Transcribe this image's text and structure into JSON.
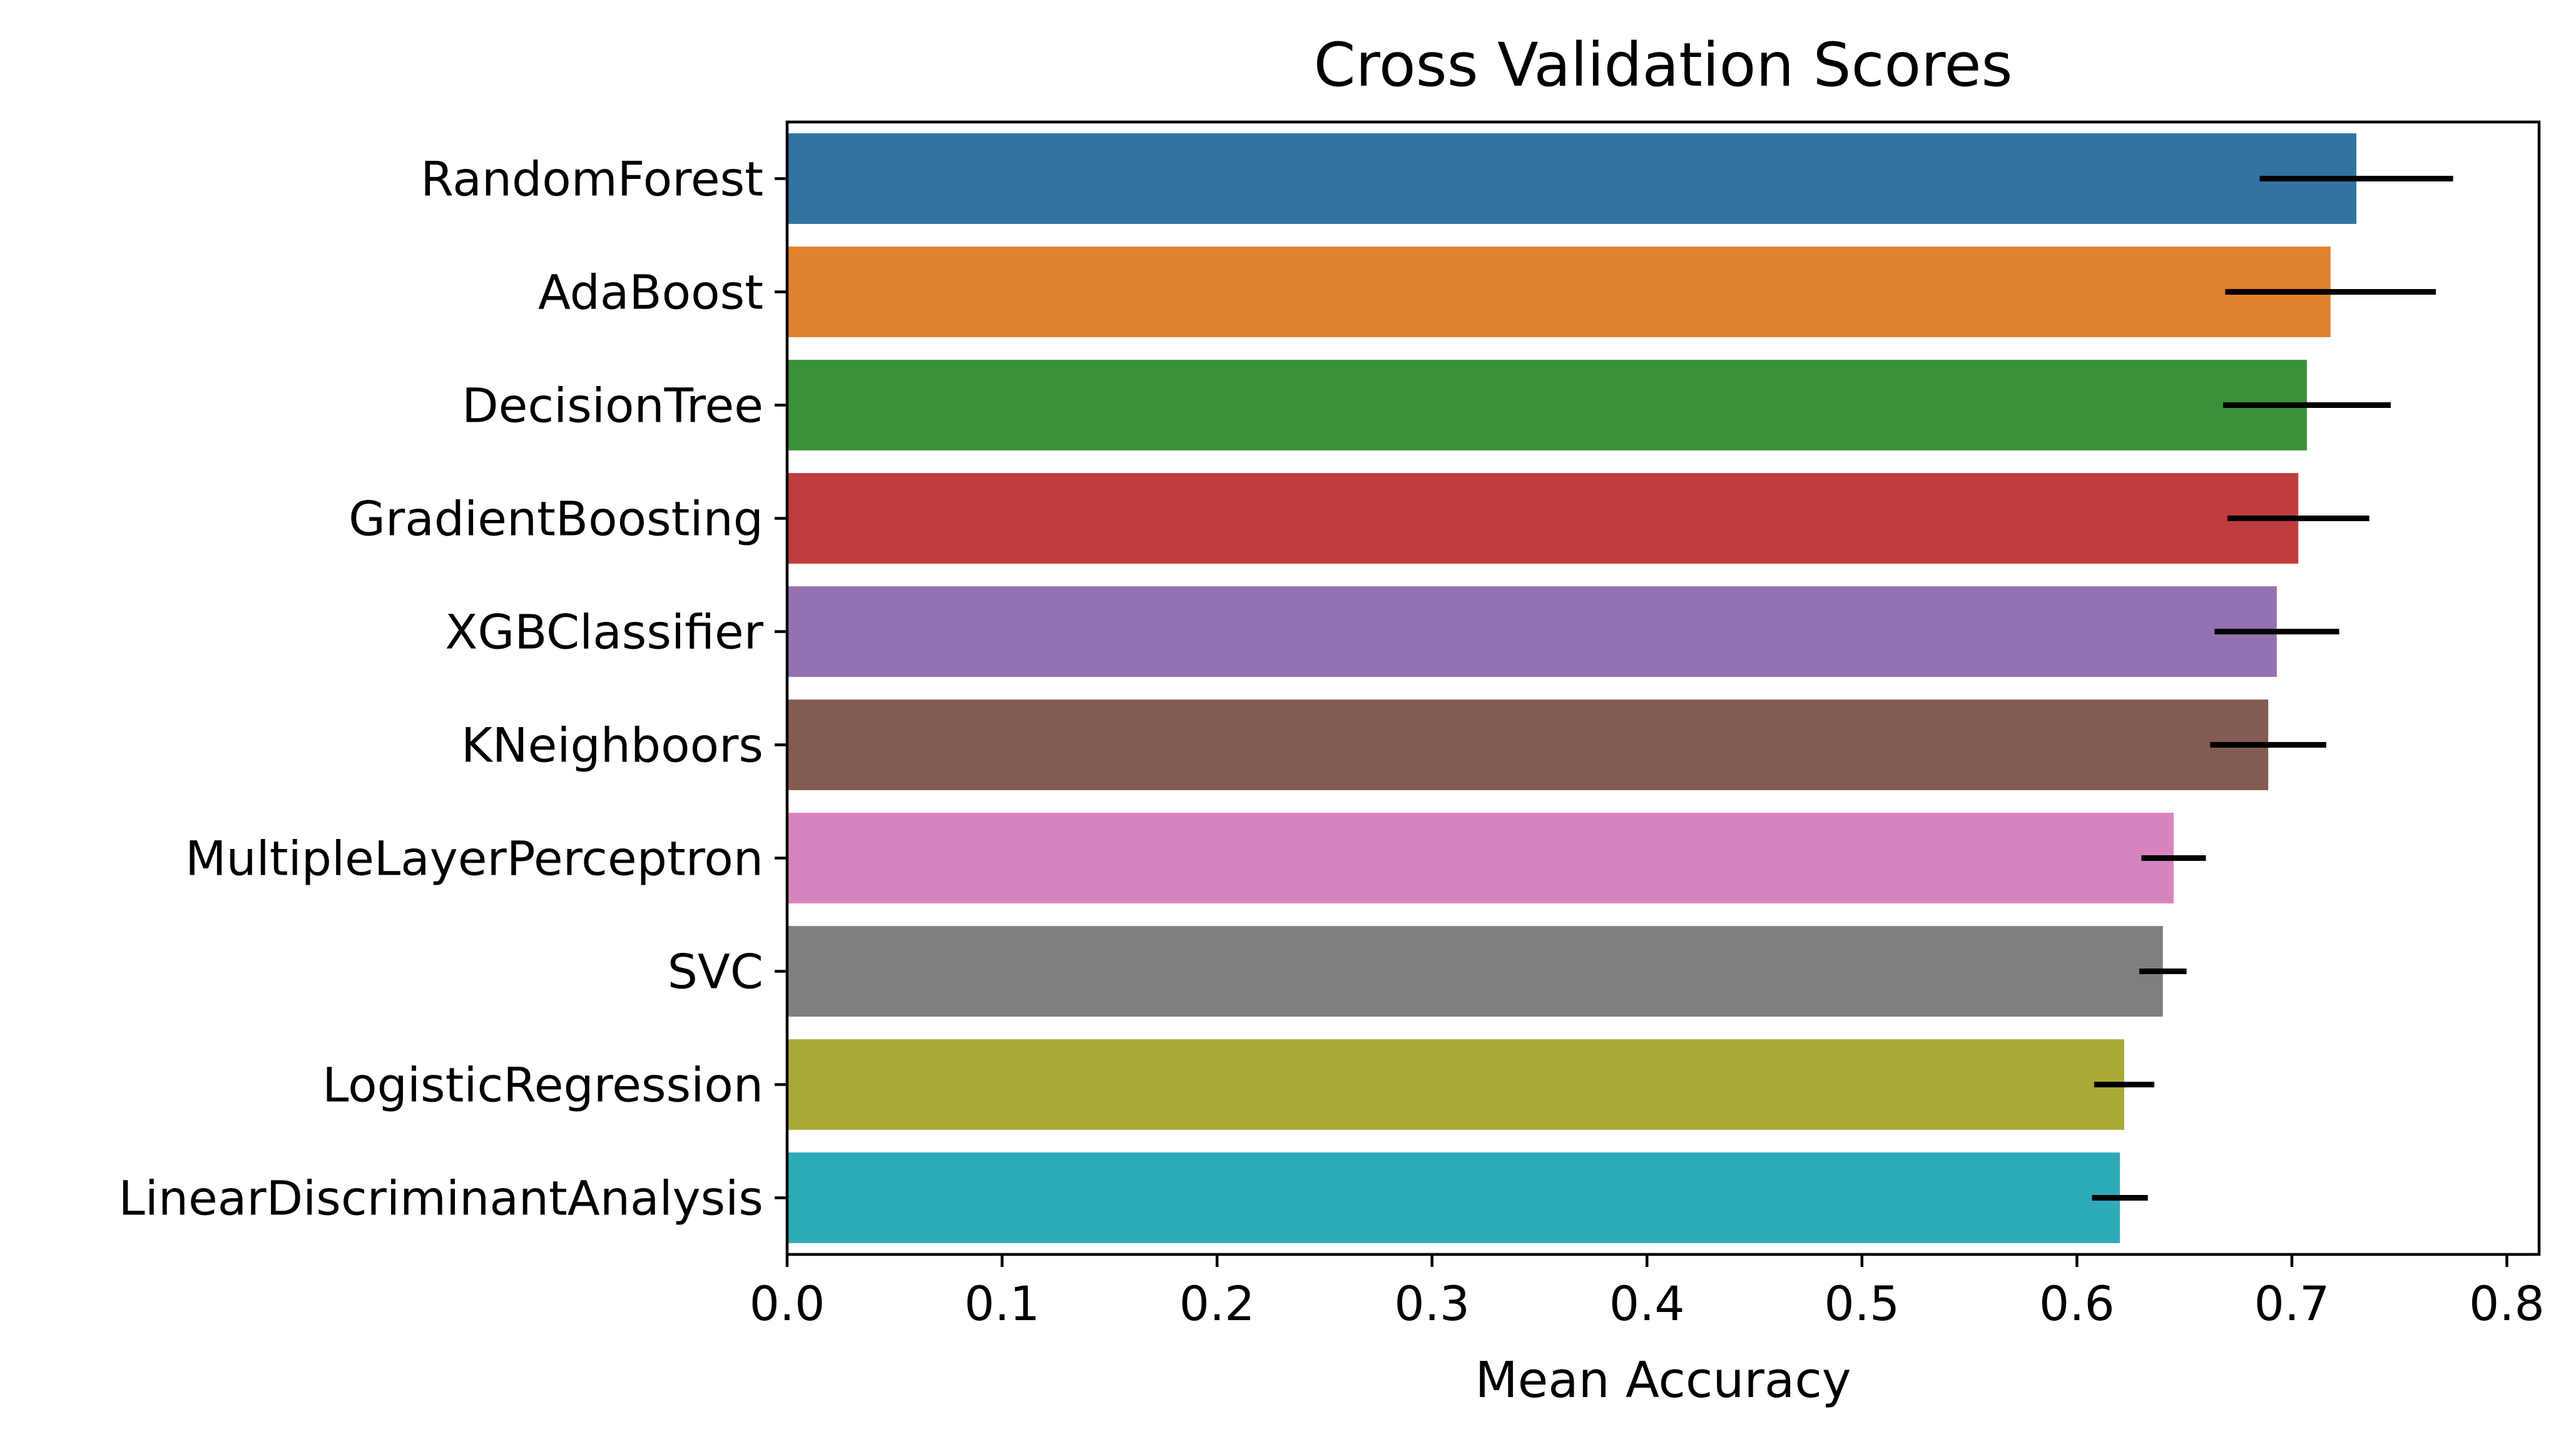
{
  "chart_data": {
    "type": "bar",
    "orientation": "horizontal",
    "title": "Cross Validation Scores",
    "xlabel": "Mean Accuracy",
    "ylabel": "",
    "xlim": [
      0.0,
      0.815
    ],
    "xticks": [
      "0.0",
      "0.1",
      "0.2",
      "0.3",
      "0.4",
      "0.5",
      "0.6",
      "0.7",
      "0.8"
    ],
    "grid": false,
    "legend": "none",
    "categories": [
      "RandomForest",
      "AdaBoost",
      "DecisionTree",
      "GradientBoosting",
      "XGBClassifier",
      "KNeighboors",
      "MultipleLayerPerceptron",
      "SVC",
      "LogisticRegression",
      "LinearDiscriminantAnalysis"
    ],
    "values": [
      0.73,
      0.718,
      0.707,
      0.703,
      0.693,
      0.689,
      0.645,
      0.64,
      0.622,
      0.62
    ],
    "errors": [
      0.045,
      0.049,
      0.039,
      0.033,
      0.029,
      0.027,
      0.015,
      0.011,
      0.014,
      0.013
    ],
    "colors": [
      "#3274a1",
      "#e1812c",
      "#3a923a",
      "#c03d3e",
      "#9372b2",
      "#845b53",
      "#d684bd",
      "#7f7f7f",
      "#a9aa35",
      "#2eabb8"
    ],
    "error_bar_color": "#000000"
  }
}
